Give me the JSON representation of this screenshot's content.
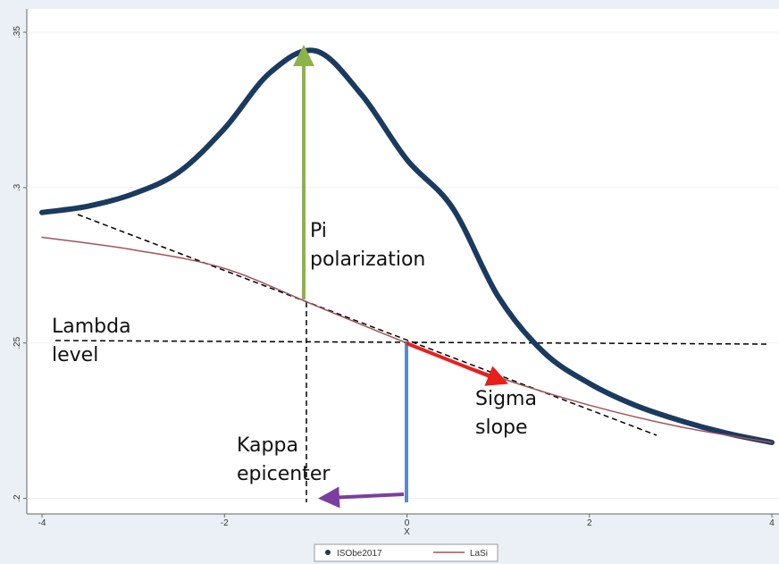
{
  "chart_data": {
    "type": "line",
    "x_label": "X",
    "xlim": [
      -4,
      4
    ],
    "xticks": [
      -4,
      -2,
      0,
      2,
      4
    ],
    "ylim": [
      0.195,
      0.3575
    ],
    "yticks": [
      {
        "value": 0.2,
        "label": ".2"
      },
      {
        "value": 0.25,
        "label": ".25"
      },
      {
        "value": 0.3,
        "label": ".3"
      },
      {
        "value": 0.35,
        "label": ".35"
      }
    ],
    "grid": true,
    "series": [
      {
        "name": "ISObe2017",
        "color": "#1b3a5f",
        "x": [
          -4,
          -3.5,
          -3,
          -2.5,
          -2,
          -1.5,
          -1,
          -0.5,
          0,
          0.5,
          1,
          1.5,
          2,
          2.5,
          3,
          3.5,
          4
        ],
        "values": [
          0.292,
          0.294,
          0.298,
          0.305,
          0.319,
          0.337,
          0.344,
          0.33,
          0.309,
          0.2935,
          0.265,
          0.247,
          0.237,
          0.23,
          0.225,
          0.221,
          0.218
        ]
      },
      {
        "name": "LaSi",
        "color": "#a0525a",
        "x": [
          -4,
          -3,
          -2,
          -1,
          0,
          1,
          2,
          3,
          4
        ],
        "values": [
          0.284,
          0.28,
          0.274,
          0.262,
          0.25,
          0.239,
          0.23,
          0.223,
          0.218
        ]
      }
    ],
    "annotations": [
      [
        "Pi",
        "polarization"
      ],
      [
        "Lambda",
        "level"
      ],
      [
        "Sigma",
        "slope"
      ],
      [
        "Kappa",
        "epicenter"
      ]
    ]
  }
}
